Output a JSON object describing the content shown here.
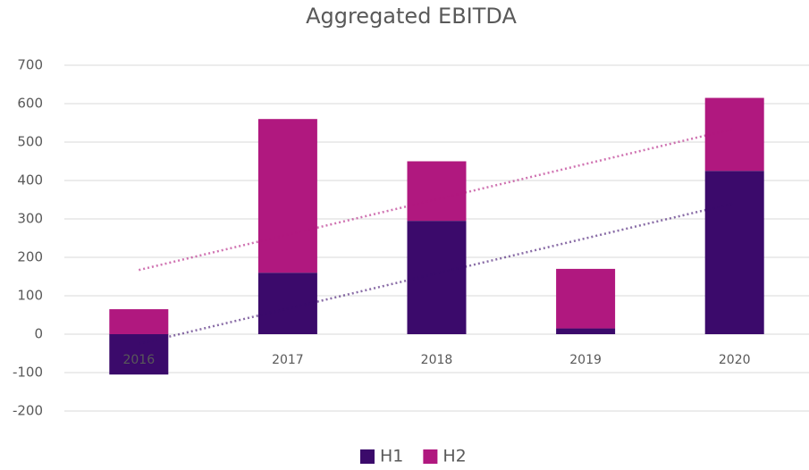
{
  "chart_data": {
    "type": "bar",
    "stacked": true,
    "title": "Aggregated EBITDA",
    "categories": [
      "2016",
      "2017",
      "2018",
      "2019",
      "2020"
    ],
    "series": [
      {
        "name": "H1",
        "color": "#3b0a6b",
        "values": [
          -105,
          160,
          295,
          15,
          425
        ]
      },
      {
        "name": "H2",
        "color": "#b0187f",
        "values": [
          65,
          400,
          155,
          155,
          190
        ]
      }
    ],
    "ylim": [
      -200,
      700
    ],
    "yticks": [
      -200,
      -100,
      0,
      100,
      200,
      300,
      400,
      500,
      600,
      700
    ],
    "grid": true,
    "legend": "bottom",
    "trendlines": true
  }
}
